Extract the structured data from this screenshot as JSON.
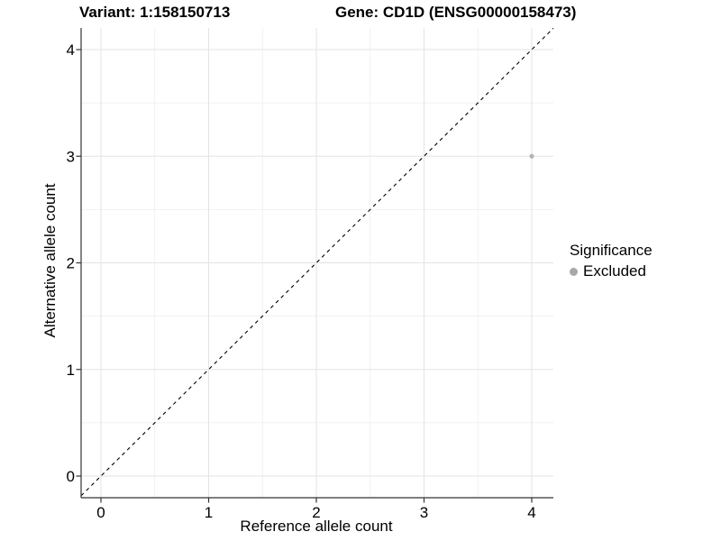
{
  "titles": {
    "left": "Variant: 1:158150713",
    "right": "Gene: CD1D (ENSG00000158473)"
  },
  "chart_data": {
    "type": "scatter",
    "title_parts": [
      "Variant: 1:158150713",
      "Gene: CD1D (ENSG00000158473)"
    ],
    "xlabel": "Reference allele count",
    "ylabel": "Alternative allele count",
    "xlim": [
      -0.2,
      4.2
    ],
    "ylim": [
      -0.2,
      4.2
    ],
    "x_ticks": [
      0,
      1,
      2,
      3,
      4
    ],
    "y_ticks": [
      0,
      1,
      2,
      3,
      4
    ],
    "grid": "major-and-minor",
    "identity_line": {
      "equation": "y = x",
      "style": "dashed",
      "color": "#000000"
    },
    "series": [
      {
        "name": "Excluded",
        "color": "#b5b5b5",
        "points": [
          {
            "x": 4,
            "y": 3
          }
        ]
      }
    ],
    "legend": {
      "title": "Significance",
      "position": "right",
      "items": [
        {
          "label": "Excluded",
          "color": "#a8a8a8"
        }
      ]
    }
  },
  "colors": {
    "background": "#ffffff",
    "axis_line": "#333333",
    "tick_label": "#000000",
    "grid_major": "#e3e3e3",
    "grid_minor": "#f1f1f1",
    "point": "#b5b5b5",
    "legend_key": "#a8a8a8"
  }
}
